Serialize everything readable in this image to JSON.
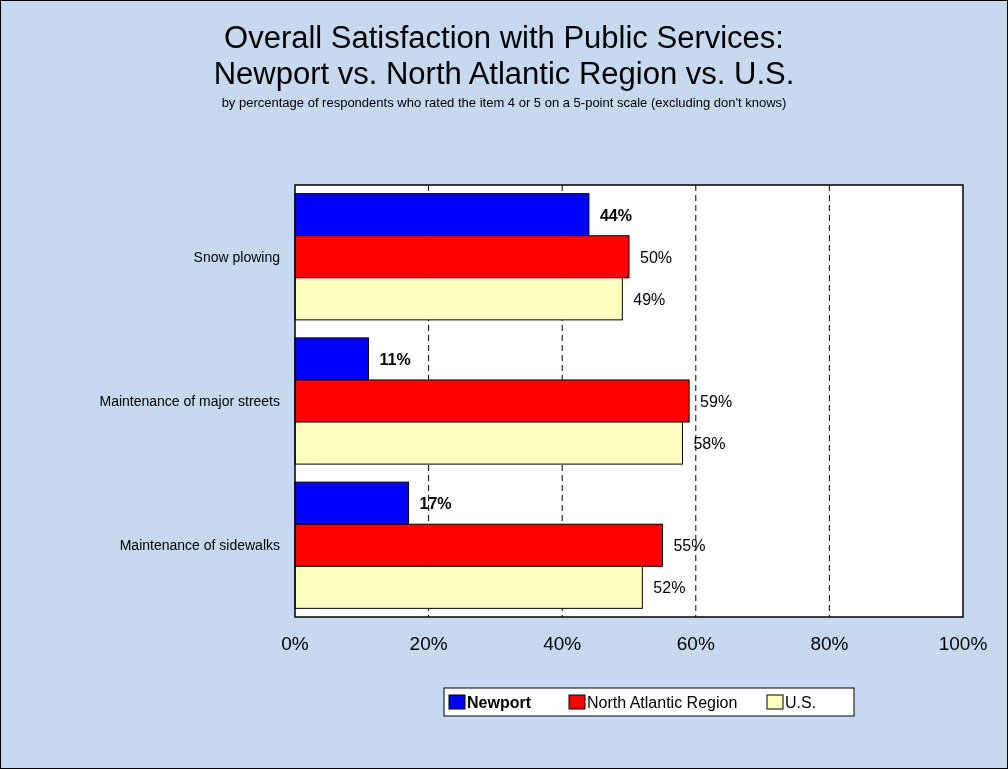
{
  "chart_data": {
    "type": "bar",
    "orientation": "horizontal",
    "title": "Overall Satisfaction with Public Services:\nNewport vs. North Atlantic Region vs. U.S.",
    "subtitle": "by percentage of respondents who rated the item 4 or 5 on a 5-point scale (excluding don't knows)",
    "categories": [
      "Snow plowing",
      "Maintenance of major streets",
      "Maintenance of sidewalks"
    ],
    "series": [
      {
        "name": "Newport",
        "color": "#0000ff",
        "values": [
          44,
          11,
          17
        ],
        "value_labels": [
          "44%",
          "11%",
          "17%"
        ]
      },
      {
        "name": "North Atlantic Region",
        "color": "#ff0000",
        "values": [
          50,
          59,
          55
        ],
        "value_labels": [
          "50%",
          "59%",
          "55%"
        ]
      },
      {
        "name": "U.S.",
        "color": "#ffffc0",
        "values": [
          49,
          58,
          52
        ],
        "value_labels": [
          "49%",
          "58%",
          "52%"
        ]
      }
    ],
    "xlim": [
      0,
      100
    ],
    "xticks": [
      {
        "value": 0,
        "label": "0%"
      },
      {
        "value": 20,
        "label": "20%"
      },
      {
        "value": 40,
        "label": "40%"
      },
      {
        "value": 60,
        "label": "60%"
      },
      {
        "value": 80,
        "label": "80%"
      },
      {
        "value": 100,
        "label": "100%"
      }
    ],
    "grid": "x",
    "line_style": "dashed",
    "legend": "bottom"
  }
}
